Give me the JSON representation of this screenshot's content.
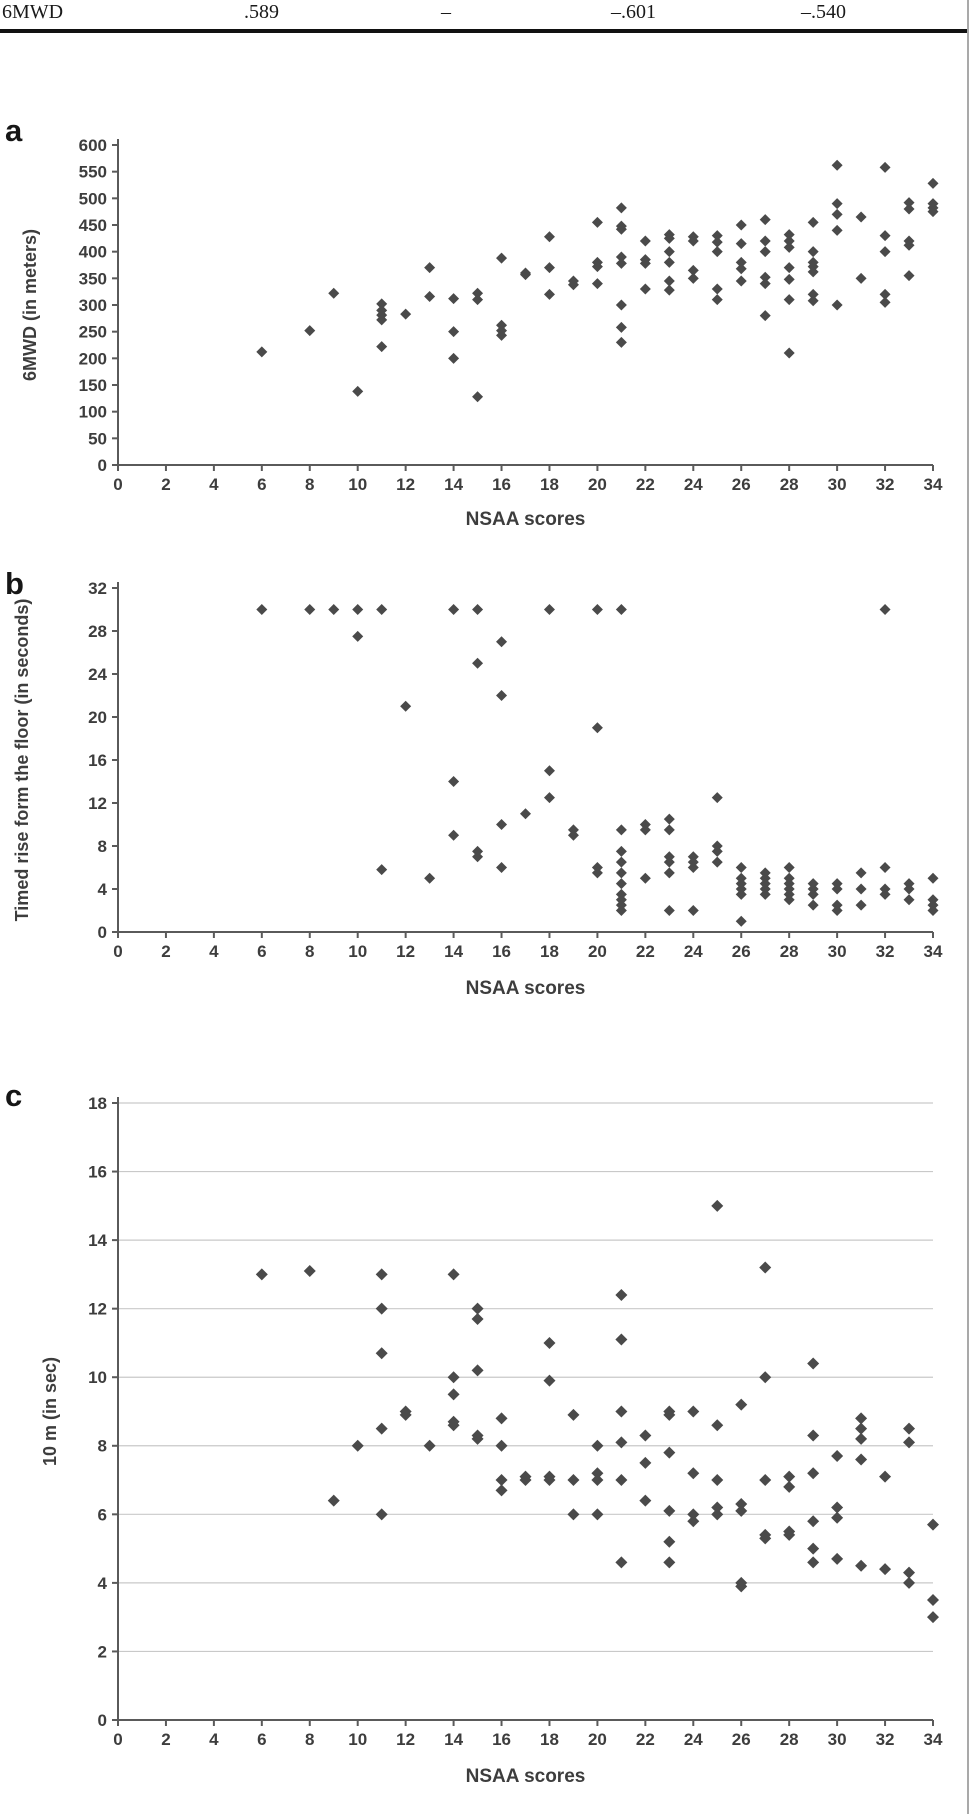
{
  "table_fragment": {
    "row_label": "6MWD",
    "values": [
      ".589",
      "–",
      "–.601",
      "–.540"
    ]
  },
  "colors": {
    "marker": "#4a4a4a",
    "axis": "#5a5a5a",
    "text": "#3d3d3d",
    "grid": "#c9c9c9"
  },
  "chart_data": [
    {
      "id": "a",
      "type": "scatter",
      "panel_label": "a",
      "xlabel": "NSAA scores",
      "ylabel": "6MWD (in meters)",
      "xlim": [
        0,
        34
      ],
      "xtick_step": 2,
      "ylim": [
        0,
        600
      ],
      "ytick_step": 50,
      "grid": false,
      "legend": false,
      "points": [
        [
          6,
          212
        ],
        [
          8,
          252
        ],
        [
          9,
          322
        ],
        [
          10,
          138
        ],
        [
          11,
          302
        ],
        [
          11,
          290
        ],
        [
          11,
          281
        ],
        [
          11,
          272
        ],
        [
          11,
          222
        ],
        [
          12,
          283
        ],
        [
          13,
          370
        ],
        [
          13,
          316
        ],
        [
          14,
          312
        ],
        [
          14,
          250
        ],
        [
          14,
          200
        ],
        [
          15,
          322
        ],
        [
          15,
          310
        ],
        [
          15,
          128
        ],
        [
          16,
          388
        ],
        [
          16,
          262
        ],
        [
          16,
          252
        ],
        [
          16,
          243
        ],
        [
          17,
          360
        ],
        [
          17,
          357
        ],
        [
          18,
          428
        ],
        [
          18,
          370
        ],
        [
          18,
          320
        ],
        [
          19,
          345
        ],
        [
          19,
          338
        ],
        [
          20,
          455
        ],
        [
          20,
          380
        ],
        [
          20,
          372
        ],
        [
          20,
          340
        ],
        [
          21,
          482
        ],
        [
          21,
          448
        ],
        [
          21,
          442
        ],
        [
          21,
          390
        ],
        [
          21,
          378
        ],
        [
          21,
          300
        ],
        [
          21,
          258
        ],
        [
          21,
          230
        ],
        [
          22,
          420
        ],
        [
          22,
          385
        ],
        [
          22,
          378
        ],
        [
          22,
          330
        ],
        [
          23,
          432
        ],
        [
          23,
          425
        ],
        [
          23,
          400
        ],
        [
          23,
          380
        ],
        [
          23,
          345
        ],
        [
          23,
          328
        ],
        [
          24,
          428
        ],
        [
          24,
          420
        ],
        [
          24,
          365
        ],
        [
          24,
          350
        ],
        [
          25,
          430
        ],
        [
          25,
          418
        ],
        [
          25,
          400
        ],
        [
          25,
          330
        ],
        [
          25,
          310
        ],
        [
          26,
          450
        ],
        [
          26,
          415
        ],
        [
          26,
          380
        ],
        [
          26,
          368
        ],
        [
          26,
          345
        ],
        [
          27,
          460
        ],
        [
          27,
          420
        ],
        [
          27,
          400
        ],
        [
          27,
          352
        ],
        [
          27,
          340
        ],
        [
          27,
          280
        ],
        [
          28,
          432
        ],
        [
          28,
          420
        ],
        [
          28,
          408
        ],
        [
          28,
          370
        ],
        [
          28,
          348
        ],
        [
          28,
          310
        ],
        [
          28,
          210
        ],
        [
          29,
          455
        ],
        [
          29,
          400
        ],
        [
          29,
          380
        ],
        [
          29,
          372
        ],
        [
          29,
          362
        ],
        [
          29,
          320
        ],
        [
          29,
          308
        ],
        [
          30,
          562
        ],
        [
          30,
          490
        ],
        [
          30,
          470
        ],
        [
          30,
          440
        ],
        [
          30,
          300
        ],
        [
          31,
          465
        ],
        [
          31,
          350
        ],
        [
          32,
          558
        ],
        [
          32,
          430
        ],
        [
          32,
          400
        ],
        [
          32,
          320
        ],
        [
          32,
          305
        ],
        [
          33,
          492
        ],
        [
          33,
          480
        ],
        [
          33,
          420
        ],
        [
          33,
          412
        ],
        [
          33,
          355
        ],
        [
          34,
          528
        ],
        [
          34,
          490
        ],
        [
          34,
          482
        ],
        [
          34,
          475
        ]
      ]
    },
    {
      "id": "b",
      "type": "scatter",
      "panel_label": "b",
      "xlabel": "NSAA scores",
      "ylabel": "Timed rise form the floor (in seconds)",
      "xlim": [
        0,
        34
      ],
      "xtick_step": 2,
      "ylim": [
        0,
        32
      ],
      "ytick_step": 4,
      "grid": false,
      "legend": false,
      "points": [
        [
          6,
          30
        ],
        [
          8,
          30
        ],
        [
          9,
          30
        ],
        [
          10,
          30
        ],
        [
          10,
          27.5
        ],
        [
          11,
          30
        ],
        [
          11,
          5.8
        ],
        [
          12,
          21
        ],
        [
          13,
          5
        ],
        [
          14,
          30
        ],
        [
          15,
          30
        ],
        [
          14,
          14
        ],
        [
          14,
          9
        ],
        [
          15,
          25
        ],
        [
          15,
          7.5
        ],
        [
          15,
          7
        ],
        [
          16,
          27
        ],
        [
          16,
          22
        ],
        [
          16,
          10
        ],
        [
          16,
          6
        ],
        [
          17,
          11
        ],
        [
          18,
          30
        ],
        [
          18,
          15
        ],
        [
          18,
          12.5
        ],
        [
          19,
          9.5
        ],
        [
          19,
          9
        ],
        [
          20,
          30
        ],
        [
          20,
          19
        ],
        [
          20,
          6
        ],
        [
          20,
          5.5
        ],
        [
          21,
          30
        ],
        [
          21,
          9.5
        ],
        [
          21,
          7.5
        ],
        [
          21,
          6.5
        ],
        [
          21,
          5.5
        ],
        [
          21,
          4.5
        ],
        [
          21,
          3.5
        ],
        [
          21,
          3
        ],
        [
          21,
          2.5
        ],
        [
          21,
          2
        ],
        [
          22,
          10
        ],
        [
          22,
          9.5
        ],
        [
          22,
          5
        ],
        [
          23,
          10.5
        ],
        [
          23,
          9.5
        ],
        [
          23,
          7
        ],
        [
          23,
          6.5
        ],
        [
          23,
          5.5
        ],
        [
          23,
          2
        ],
        [
          24,
          7
        ],
        [
          24,
          6.5
        ],
        [
          24,
          6
        ],
        [
          24,
          2
        ],
        [
          25,
          12.5
        ],
        [
          25,
          8
        ],
        [
          25,
          7.5
        ],
        [
          25,
          6.5
        ],
        [
          26,
          6
        ],
        [
          26,
          5
        ],
        [
          26,
          4.5
        ],
        [
          26,
          4
        ],
        [
          26,
          3.5
        ],
        [
          26,
          1
        ],
        [
          27,
          5.5
        ],
        [
          27,
          5
        ],
        [
          27,
          4.5
        ],
        [
          27,
          4
        ],
        [
          27,
          3.5
        ],
        [
          28,
          6
        ],
        [
          28,
          5
        ],
        [
          28,
          4.5
        ],
        [
          28,
          4
        ],
        [
          28,
          3.5
        ],
        [
          28,
          3
        ],
        [
          29,
          4.5
        ],
        [
          29,
          4
        ],
        [
          29,
          3.5
        ],
        [
          29,
          2.5
        ],
        [
          30,
          4.5
        ],
        [
          30,
          4
        ],
        [
          30,
          2.5
        ],
        [
          30,
          2
        ],
        [
          31,
          5.5
        ],
        [
          31,
          4
        ],
        [
          31,
          2.5
        ],
        [
          32,
          30
        ],
        [
          32,
          6
        ],
        [
          32,
          4
        ],
        [
          32,
          3.5
        ],
        [
          33,
          4.5
        ],
        [
          33,
          4
        ],
        [
          33,
          3
        ],
        [
          34,
          5
        ],
        [
          34,
          3
        ],
        [
          34,
          2.5
        ],
        [
          34,
          2
        ]
      ]
    },
    {
      "id": "c",
      "type": "scatter",
      "panel_label": "c",
      "xlabel": "NSAA scores",
      "ylabel": "10 m (in sec)",
      "xlim": [
        0,
        34
      ],
      "xtick_step": 2,
      "ylim": [
        0,
        18
      ],
      "ytick_step": 2,
      "grid": true,
      "legend": false,
      "points": [
        [
          6,
          13
        ],
        [
          8,
          13.1
        ],
        [
          9,
          6.4
        ],
        [
          10,
          8
        ],
        [
          11,
          13
        ],
        [
          11,
          12
        ],
        [
          11,
          10.7
        ],
        [
          11,
          8.5
        ],
        [
          11,
          6
        ],
        [
          12,
          9
        ],
        [
          12,
          8.9
        ],
        [
          13,
          8
        ],
        [
          14,
          13
        ],
        [
          14,
          10
        ],
        [
          14,
          9.5
        ],
        [
          14,
          8.7
        ],
        [
          14,
          8.6
        ],
        [
          15,
          12
        ],
        [
          15,
          11.7
        ],
        [
          15,
          10.2
        ],
        [
          15,
          8.3
        ],
        [
          15,
          8.2
        ],
        [
          16,
          8.8
        ],
        [
          16,
          8
        ],
        [
          16,
          7
        ],
        [
          16,
          6.7
        ],
        [
          17,
          7.1
        ],
        [
          17,
          7
        ],
        [
          18,
          11
        ],
        [
          18,
          9.9
        ],
        [
          18,
          7.1
        ],
        [
          18,
          7
        ],
        [
          19,
          8.9
        ],
        [
          19,
          7
        ],
        [
          19,
          6
        ],
        [
          20,
          8
        ],
        [
          20,
          7.2
        ],
        [
          20,
          7
        ],
        [
          20,
          6
        ],
        [
          21,
          12.4
        ],
        [
          21,
          11.1
        ],
        [
          21,
          9
        ],
        [
          21,
          8.1
        ],
        [
          21,
          7
        ],
        [
          21,
          4.6
        ],
        [
          22,
          8.3
        ],
        [
          22,
          7.5
        ],
        [
          22,
          6.4
        ],
        [
          23,
          9
        ],
        [
          23,
          8.9
        ],
        [
          23,
          7.8
        ],
        [
          23,
          6.1
        ],
        [
          23,
          5.2
        ],
        [
          23,
          4.6
        ],
        [
          24,
          9
        ],
        [
          24,
          7.2
        ],
        [
          24,
          6
        ],
        [
          24,
          5.8
        ],
        [
          25,
          15
        ],
        [
          25,
          8.6
        ],
        [
          25,
          7
        ],
        [
          25,
          6.2
        ],
        [
          25,
          6
        ],
        [
          26,
          9.2
        ],
        [
          26,
          6.3
        ],
        [
          26,
          6.1
        ],
        [
          26,
          4
        ],
        [
          26,
          3.9
        ],
        [
          27,
          13.2
        ],
        [
          27,
          10
        ],
        [
          27,
          7
        ],
        [
          27,
          5.4
        ],
        [
          27,
          5.3
        ],
        [
          28,
          7.1
        ],
        [
          28,
          6.8
        ],
        [
          28,
          5.5
        ],
        [
          28,
          5.4
        ],
        [
          29,
          10.4
        ],
        [
          29,
          8.3
        ],
        [
          29,
          7.2
        ],
        [
          29,
          5.8
        ],
        [
          29,
          5
        ],
        [
          29,
          4.6
        ],
        [
          30,
          7.7
        ],
        [
          30,
          6.2
        ],
        [
          30,
          5.9
        ],
        [
          30,
          4.7
        ],
        [
          31,
          8.8
        ],
        [
          31,
          8.5
        ],
        [
          31,
          8.2
        ],
        [
          31,
          7.6
        ],
        [
          31,
          4.5
        ],
        [
          32,
          7.1
        ],
        [
          32,
          4.4
        ],
        [
          33,
          8.5
        ],
        [
          33,
          8.1
        ],
        [
          33,
          4.3
        ],
        [
          33,
          4
        ],
        [
          34,
          5.7
        ],
        [
          34,
          3.5
        ],
        [
          34,
          3
        ]
      ]
    }
  ]
}
